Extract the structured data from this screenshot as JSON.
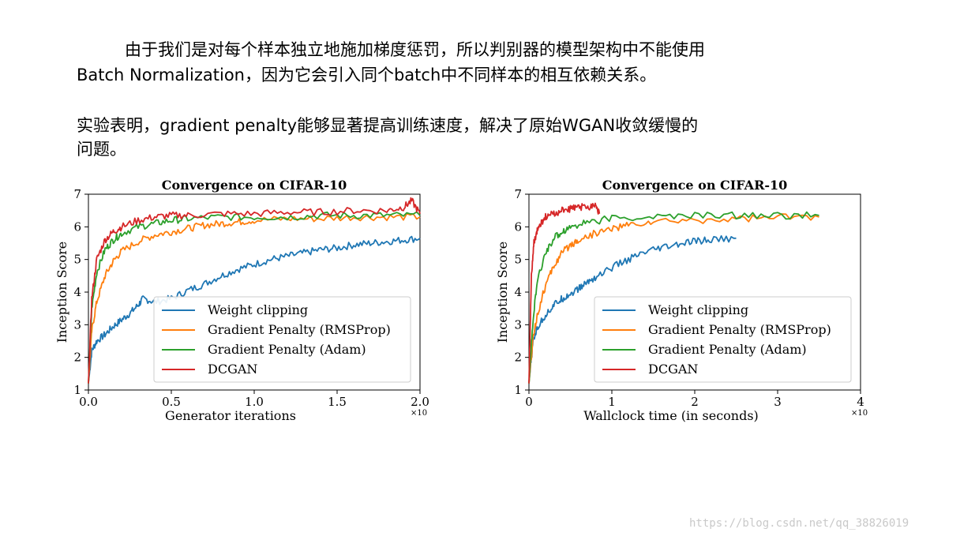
{
  "text": {
    "para1_line1": "由于我们是对每个样本独立地施加梯度惩罚，所以判别器的模型架构中不能使用",
    "para1_line2": "Batch Normalization，因为它会引入同个batch中不同样本的相互依赖关系。",
    "para2_line1": "实验表明，gradient penalty能够显著提高训练速度，解决了原始WGAN收敛缓慢的",
    "para2_line2": "问题。",
    "watermark": "https://blog.csdn.net/qq_38826019"
  },
  "colors": {
    "weight_clipping": "#1f77b4",
    "gp_rmsprop": "#ff7f0e",
    "gp_adam": "#2ca02c",
    "dcgan": "#d62728"
  },
  "chart_data": [
    {
      "type": "line",
      "title": "Convergence on CIFAR-10",
      "xlabel": "Generator iterations",
      "ylabel": "Inception Score",
      "x_multiplier": "×10",
      "xlim": [
        0,
        2.0
      ],
      "ylim": [
        1,
        7
      ],
      "xticks": [
        "0.0",
        "0.5",
        "1.0",
        "1.5",
        "2.0"
      ],
      "yticks": [
        "1",
        "2",
        "3",
        "4",
        "5",
        "6",
        "7"
      ],
      "legend": "lower-right",
      "series": [
        {
          "name": "Weight clipping",
          "color": "#1f77b4",
          "x": [
            0,
            0.02,
            0.05,
            0.1,
            0.15,
            0.2,
            0.25,
            0.3,
            0.33,
            0.4,
            0.5,
            0.6,
            0.7,
            0.8,
            0.9,
            1.0,
            1.1,
            1.2,
            1.3,
            1.4,
            1.5,
            1.6,
            1.7,
            1.8,
            1.9,
            2.0
          ],
          "y": [
            1.2,
            2.2,
            2.5,
            2.7,
            2.95,
            3.15,
            3.35,
            3.6,
            3.8,
            3.7,
            3.8,
            4.05,
            4.25,
            4.5,
            4.7,
            4.85,
            5.0,
            5.1,
            5.2,
            5.3,
            5.35,
            5.45,
            5.5,
            5.55,
            5.6,
            5.65
          ]
        },
        {
          "name": "Gradient Penalty (RMSProp)",
          "color": "#ff7f0e",
          "x": [
            0,
            0.02,
            0.05,
            0.1,
            0.15,
            0.2,
            0.3,
            0.4,
            0.5,
            0.6,
            0.7,
            0.8,
            0.9,
            1.0,
            1.2,
            1.4,
            1.6,
            1.8,
            2.0
          ],
          "y": [
            1.2,
            2.8,
            3.7,
            4.5,
            4.95,
            5.25,
            5.55,
            5.75,
            5.85,
            5.95,
            6.05,
            6.1,
            6.15,
            6.2,
            6.25,
            6.25,
            6.3,
            6.3,
            6.3
          ]
        },
        {
          "name": "Gradient Penalty (Adam)",
          "color": "#2ca02c",
          "x": [
            0,
            0.02,
            0.05,
            0.1,
            0.15,
            0.2,
            0.3,
            0.4,
            0.5,
            0.6,
            0.8,
            1.0,
            1.2,
            1.4,
            1.6,
            1.8,
            2.0
          ],
          "y": [
            1.2,
            3.5,
            4.6,
            5.3,
            5.6,
            5.8,
            6.0,
            6.1,
            6.2,
            6.25,
            6.3,
            6.3,
            6.3,
            6.35,
            6.35,
            6.35,
            6.35
          ]
        },
        {
          "name": "DCGAN",
          "color": "#d62728",
          "x": [
            0,
            0.02,
            0.05,
            0.1,
            0.15,
            0.2,
            0.3,
            0.4,
            0.5,
            0.6,
            0.8,
            1.0,
            1.2,
            1.4,
            1.6,
            1.8,
            1.9,
            1.95,
            2.0
          ],
          "y": [
            1.2,
            3.8,
            5.0,
            5.6,
            5.85,
            6.0,
            6.2,
            6.3,
            6.35,
            6.35,
            6.4,
            6.4,
            6.45,
            6.45,
            6.5,
            6.5,
            6.6,
            6.8,
            6.4
          ]
        }
      ]
    },
    {
      "type": "line",
      "title": "Convergence on CIFAR-10",
      "xlabel": "Wallclock time (in seconds)",
      "ylabel": "Inception Score",
      "x_multiplier": "×10",
      "xlim": [
        0,
        4
      ],
      "ylim": [
        1,
        7
      ],
      "xticks": [
        "0",
        "1",
        "2",
        "3",
        "4"
      ],
      "yticks": [
        "1",
        "2",
        "3",
        "4",
        "5",
        "6",
        "7"
      ],
      "legend": "lower-right",
      "series": [
        {
          "name": "Weight clipping",
          "color": "#1f77b4",
          "x": [
            0,
            0.05,
            0.1,
            0.2,
            0.3,
            0.4,
            0.5,
            0.6,
            0.7,
            0.8,
            1.0,
            1.2,
            1.4,
            1.6,
            1.8,
            2.0,
            2.2,
            2.5
          ],
          "y": [
            1.2,
            2.5,
            2.9,
            3.3,
            3.6,
            3.8,
            3.95,
            4.1,
            4.3,
            4.45,
            4.75,
            5.0,
            5.2,
            5.35,
            5.45,
            5.55,
            5.6,
            5.65
          ]
        },
        {
          "name": "Gradient Penalty (RMSProp)",
          "color": "#ff7f0e",
          "x": [
            0,
            0.05,
            0.1,
            0.2,
            0.3,
            0.4,
            0.5,
            0.6,
            0.8,
            1.0,
            1.2,
            1.5,
            2.0,
            2.5,
            3.0,
            3.5
          ],
          "y": [
            1.2,
            2.6,
            3.3,
            4.2,
            4.8,
            5.2,
            5.45,
            5.6,
            5.8,
            5.95,
            6.05,
            6.15,
            6.2,
            6.25,
            6.3,
            6.3
          ]
        },
        {
          "name": "Gradient Penalty (Adam)",
          "color": "#2ca02c",
          "x": [
            0,
            0.05,
            0.1,
            0.2,
            0.3,
            0.4,
            0.5,
            0.7,
            1.0,
            1.5,
            2.0,
            2.5,
            3.0,
            3.5
          ],
          "y": [
            1.2,
            3.2,
            4.3,
            5.2,
            5.65,
            5.85,
            6.0,
            6.15,
            6.25,
            6.3,
            6.35,
            6.35,
            6.35,
            6.35
          ]
        },
        {
          "name": "DCGAN",
          "color": "#d62728",
          "x": [
            0,
            0.03,
            0.06,
            0.1,
            0.15,
            0.2,
            0.3,
            0.4,
            0.5,
            0.6,
            0.7,
            0.8,
            0.85
          ],
          "y": [
            1.2,
            4.5,
            5.5,
            5.9,
            6.1,
            6.3,
            6.4,
            6.5,
            6.55,
            6.6,
            6.6,
            6.7,
            6.4
          ]
        }
      ]
    }
  ]
}
